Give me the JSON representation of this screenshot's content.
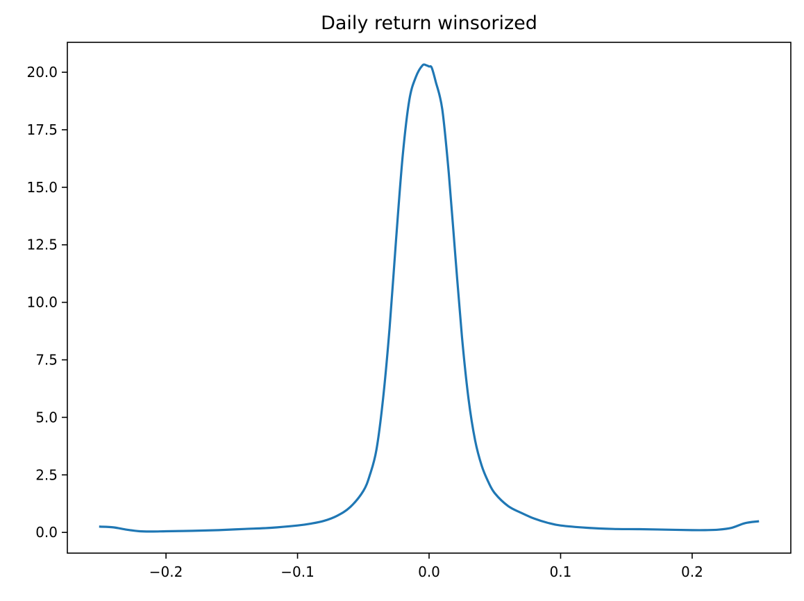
{
  "chart_data": {
    "type": "line",
    "title": "Daily return winsorized",
    "xlabel": "",
    "ylabel": "",
    "xlim": [
      -0.275,
      0.275
    ],
    "ylim": [
      -0.9,
      21.3
    ],
    "xticks": [
      -0.2,
      -0.1,
      0.0,
      0.1,
      0.2
    ],
    "xtick_labels": [
      "−0.2",
      "−0.1",
      "0.0",
      "0.1",
      "0.2"
    ],
    "yticks": [
      0,
      2.5,
      5,
      7.5,
      10,
      12.5,
      15,
      17.5,
      20
    ],
    "ytick_labels": [
      "0.0",
      "2.5",
      "5.0",
      "7.5",
      "10.0",
      "12.5",
      "15.0",
      "17.5",
      "20.0"
    ],
    "grid": false,
    "legend": false,
    "series": [
      {
        "color": "#1f77b4",
        "x": [
          -0.25,
          -0.24,
          -0.23,
          -0.22,
          -0.21,
          -0.2,
          -0.18,
          -0.16,
          -0.14,
          -0.12,
          -0.1,
          -0.09,
          -0.08,
          -0.07,
          -0.06,
          -0.05,
          -0.045,
          -0.04,
          -0.035,
          -0.03,
          -0.025,
          -0.02,
          -0.015,
          -0.01,
          -0.005,
          -0.002,
          0.0,
          0.002,
          0.005,
          0.01,
          0.015,
          0.02,
          0.025,
          0.03,
          0.035,
          0.04,
          0.045,
          0.05,
          0.06,
          0.07,
          0.08,
          0.09,
          0.1,
          0.12,
          0.14,
          0.16,
          0.18,
          0.2,
          0.21,
          0.22,
          0.23,
          0.24,
          0.25
        ],
        "y": [
          0.25,
          0.22,
          0.12,
          0.05,
          0.04,
          0.05,
          0.07,
          0.1,
          0.15,
          0.2,
          0.3,
          0.38,
          0.5,
          0.72,
          1.1,
          1.8,
          2.5,
          3.6,
          5.8,
          8.9,
          12.8,
          16.4,
          18.8,
          19.8,
          20.3,
          20.3,
          20.25,
          20.2,
          19.6,
          18.4,
          15.6,
          12.0,
          8.5,
          5.8,
          4.0,
          2.9,
          2.2,
          1.7,
          1.15,
          0.85,
          0.6,
          0.42,
          0.3,
          0.2,
          0.15,
          0.14,
          0.12,
          0.1,
          0.1,
          0.12,
          0.2,
          0.4,
          0.48
        ]
      }
    ]
  }
}
